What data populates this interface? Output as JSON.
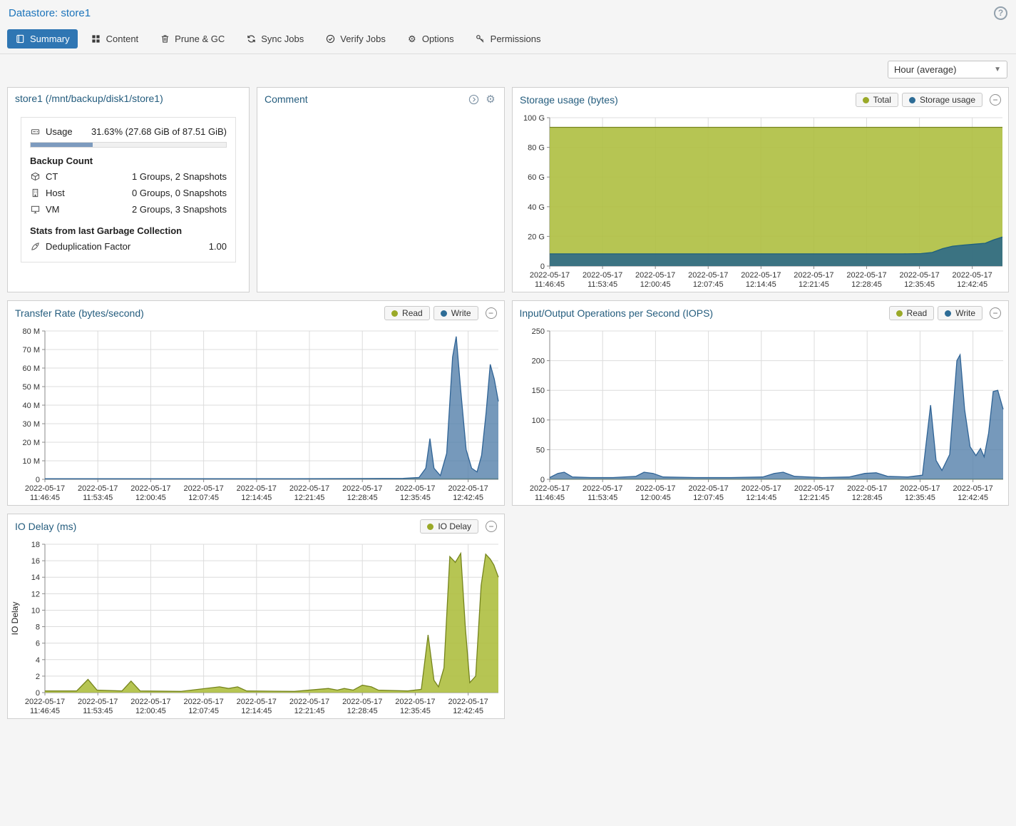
{
  "header": {
    "title": "Datastore: store1"
  },
  "icons": {
    "help": "?",
    "caret": "▼",
    "collapse": "−",
    "gear": "⚙"
  },
  "colors": {
    "accent": "#2f76b3",
    "link": "#1c74bb",
    "panel_title": "#255d7e",
    "progress_fill": "#7d9bbe",
    "olive": "#9aa928",
    "blue": "#2d6c96"
  },
  "tabs": [
    {
      "label": "Summary",
      "icon": "book-icon",
      "active": true
    },
    {
      "label": "Content",
      "icon": "grid-icon",
      "active": false
    },
    {
      "label": "Prune & GC",
      "icon": "trash-icon",
      "active": false
    },
    {
      "label": "Sync Jobs",
      "icon": "sync-icon",
      "active": false
    },
    {
      "label": "Verify Jobs",
      "icon": "check-icon",
      "active": false
    },
    {
      "label": "Options",
      "icon": "gear-icon",
      "active": false
    },
    {
      "label": "Permissions",
      "icon": "key-icon",
      "active": false
    }
  ],
  "toolbar": {
    "range_label": "Hour (average)"
  },
  "summary_panel": {
    "title": "store1 (/mnt/backup/disk1/store1)",
    "usage_label": "Usage",
    "usage_value": "31.63% (27.68 GiB of 87.51 GiB)",
    "usage_percent": 31.63,
    "backup_count_title": "Backup Count",
    "rows": [
      {
        "icon": "ct-icon",
        "label": "CT",
        "value": "1 Groups, 2 Snapshots"
      },
      {
        "icon": "host-icon",
        "label": "Host",
        "value": "0 Groups, 0 Snapshots"
      },
      {
        "icon": "vm-icon",
        "label": "VM",
        "value": "2 Groups, 3 Snapshots"
      }
    ],
    "gc_title": "Stats from last Garbage Collection",
    "dedup_label": "Deduplication Factor",
    "dedup_value": "1.00"
  },
  "comment_panel": {
    "title": "Comment",
    "content": ""
  },
  "chart_data": [
    {
      "id": "storage-usage",
      "type": "area",
      "title": "Storage usage (bytes)",
      "ymax": 100,
      "grid": true,
      "legend_position": "header",
      "yticks": [
        {
          "v": 0,
          "label": "0"
        },
        {
          "v": 20,
          "label": "20 G"
        },
        {
          "v": 40,
          "label": "40 G"
        },
        {
          "v": 60,
          "label": "60 G"
        },
        {
          "v": 80,
          "label": "80 G"
        },
        {
          "v": 100,
          "label": "100 G"
        }
      ],
      "xticks": {
        "date": "2022-05-17",
        "times": [
          "11:46:45",
          "11:53:45",
          "12:00:45",
          "12:07:45",
          "12:14:45",
          "12:21:45",
          "12:28:45",
          "12:35:45",
          "12:42:45"
        ]
      },
      "legend": [
        {
          "label": "Total",
          "color": "#9aa928"
        },
        {
          "label": "Storage usage",
          "color": "#2d6c96"
        }
      ],
      "series": [
        {
          "name": "Total",
          "stroke": "#75841c",
          "fill": "rgba(174,191,64,0.9)",
          "points": [
            [
              0,
              93.5
            ],
            [
              0.5,
              93.5
            ],
            [
              1,
              93.5
            ]
          ]
        },
        {
          "name": "Storage usage",
          "stroke": "#1d5f7e",
          "fill": "rgba(45,105,135,0.9)",
          "points": [
            [
              0,
              8.2
            ],
            [
              0.78,
              8.2
            ],
            [
              0.82,
              8.4
            ],
            [
              0.845,
              9.2
            ],
            [
              0.868,
              11.8
            ],
            [
              0.89,
              13.4
            ],
            [
              0.915,
              14.2
            ],
            [
              0.94,
              14.8
            ],
            [
              0.962,
              15.4
            ],
            [
              0.98,
              17.6
            ],
            [
              1,
              19.6
            ]
          ]
        }
      ]
    },
    {
      "id": "transfer-rate",
      "type": "area",
      "title": "Transfer Rate (bytes/second)",
      "ymax": 80,
      "grid": true,
      "legend_position": "header",
      "yticks": [
        {
          "v": 0,
          "label": "0"
        },
        {
          "v": 10,
          "label": "10 M"
        },
        {
          "v": 20,
          "label": "20 M"
        },
        {
          "v": 30,
          "label": "30 M"
        },
        {
          "v": 40,
          "label": "40 M"
        },
        {
          "v": 50,
          "label": "50 M"
        },
        {
          "v": 60,
          "label": "60 M"
        },
        {
          "v": 70,
          "label": "70 M"
        },
        {
          "v": 80,
          "label": "80 M"
        }
      ],
      "xticks": {
        "date": "2022-05-17",
        "times": [
          "11:46:45",
          "11:53:45",
          "12:00:45",
          "12:07:45",
          "12:14:45",
          "12:21:45",
          "12:28:45",
          "12:35:45",
          "12:42:45"
        ]
      },
      "legend": [
        {
          "label": "Read",
          "color": "#9aa928"
        },
        {
          "label": "Write",
          "color": "#2d6c96"
        }
      ],
      "series": [
        {
          "name": "Read",
          "stroke": "#75841c",
          "fill": "rgba(174,191,64,0.9)",
          "points": [
            [
              0,
              0.25
            ],
            [
              1,
              0.25
            ]
          ]
        },
        {
          "name": "Write",
          "stroke": "#2f6395",
          "fill": "rgba(84,128,170,0.8)",
          "points": [
            [
              0,
              0.3
            ],
            [
              0.55,
              0.3
            ],
            [
              0.79,
              0.5
            ],
            [
              0.825,
              1
            ],
            [
              0.84,
              6
            ],
            [
              0.849,
              22
            ],
            [
              0.858,
              6
            ],
            [
              0.872,
              2
            ],
            [
              0.886,
              14
            ],
            [
              0.899,
              66
            ],
            [
              0.907,
              77
            ],
            [
              0.917,
              48
            ],
            [
              0.929,
              16
            ],
            [
              0.941,
              6
            ],
            [
              0.953,
              4
            ],
            [
              0.963,
              13
            ],
            [
              0.973,
              36
            ],
            [
              0.982,
              62
            ],
            [
              0.991,
              54
            ],
            [
              1,
              42
            ]
          ]
        }
      ]
    },
    {
      "id": "iops",
      "type": "area",
      "title": "Input/Output Operations per Second (IOPS)",
      "ymax": 250,
      "grid": true,
      "legend_position": "header",
      "yticks": [
        {
          "v": 0,
          "label": "0"
        },
        {
          "v": 50,
          "label": "50"
        },
        {
          "v": 100,
          "label": "100"
        },
        {
          "v": 150,
          "label": "150"
        },
        {
          "v": 200,
          "label": "200"
        },
        {
          "v": 250,
          "label": "250"
        }
      ],
      "xticks": {
        "date": "2022-05-17",
        "times": [
          "11:46:45",
          "11:53:45",
          "12:00:45",
          "12:07:45",
          "12:14:45",
          "12:21:45",
          "12:28:45",
          "12:35:45",
          "12:42:45"
        ]
      },
      "legend": [
        {
          "label": "Read",
          "color": "#9aa928"
        },
        {
          "label": "Write",
          "color": "#2d6c96"
        }
      ],
      "series": [
        {
          "name": "Read",
          "stroke": "#75841c",
          "fill": "rgba(174,191,64,0.9)",
          "points": [
            [
              0,
              0.6
            ],
            [
              1,
              0.6
            ]
          ]
        },
        {
          "name": "Write",
          "stroke": "#2f6395",
          "fill": "rgba(84,128,170,0.8)",
          "points": [
            [
              0,
              3
            ],
            [
              0.018,
              10
            ],
            [
              0.032,
              12
            ],
            [
              0.05,
              4
            ],
            [
              0.09,
              3
            ],
            [
              0.14,
              3
            ],
            [
              0.19,
              5
            ],
            [
              0.208,
              12
            ],
            [
              0.228,
              10
            ],
            [
              0.25,
              4
            ],
            [
              0.32,
              3
            ],
            [
              0.4,
              3
            ],
            [
              0.47,
              4
            ],
            [
              0.495,
              10
            ],
            [
              0.515,
              12
            ],
            [
              0.54,
              5
            ],
            [
              0.6,
              3
            ],
            [
              0.66,
              4
            ],
            [
              0.695,
              10
            ],
            [
              0.72,
              11
            ],
            [
              0.745,
              5
            ],
            [
              0.79,
              4
            ],
            [
              0.822,
              7
            ],
            [
              0.84,
              125
            ],
            [
              0.852,
              32
            ],
            [
              0.865,
              15
            ],
            [
              0.882,
              42
            ],
            [
              0.898,
              200
            ],
            [
              0.905,
              210
            ],
            [
              0.915,
              118
            ],
            [
              0.927,
              55
            ],
            [
              0.94,
              40
            ],
            [
              0.95,
              52
            ],
            [
              0.958,
              38
            ],
            [
              0.968,
              78
            ],
            [
              0.978,
              148
            ],
            [
              0.988,
              150
            ],
            [
              1,
              118
            ]
          ]
        }
      ]
    },
    {
      "id": "io-delay",
      "type": "area",
      "title": "IO Delay (ms)",
      "ymax": 18,
      "ylabel": "IO Delay",
      "grid": true,
      "legend_position": "header",
      "yticks": [
        {
          "v": 0,
          "label": "0"
        },
        {
          "v": 2,
          "label": "2"
        },
        {
          "v": 4,
          "label": "4"
        },
        {
          "v": 6,
          "label": "6"
        },
        {
          "v": 8,
          "label": "8"
        },
        {
          "v": 10,
          "label": "10"
        },
        {
          "v": 12,
          "label": "12"
        },
        {
          "v": 14,
          "label": "14"
        },
        {
          "v": 16,
          "label": "16"
        },
        {
          "v": 18,
          "label": "18"
        }
      ],
      "xticks": {
        "date": "2022-05-17",
        "times": [
          "11:46:45",
          "11:53:45",
          "12:00:45",
          "12:07:45",
          "12:14:45",
          "12:21:45",
          "12:28:45",
          "12:35:45",
          "12:42:45"
        ]
      },
      "legend": [
        {
          "label": "IO Delay",
          "color": "#9aa928"
        }
      ],
      "series": [
        {
          "name": "IO Delay",
          "stroke": "#75841c",
          "fill": "rgba(174,191,64,0.9)",
          "points": [
            [
              0,
              0.2
            ],
            [
              0.07,
              0.2
            ],
            [
              0.095,
              1.6
            ],
            [
              0.115,
              0.3
            ],
            [
              0.17,
              0.2
            ],
            [
              0.19,
              1.4
            ],
            [
              0.21,
              0.2
            ],
            [
              0.3,
              0.15
            ],
            [
              0.385,
              0.7
            ],
            [
              0.405,
              0.5
            ],
            [
              0.425,
              0.7
            ],
            [
              0.445,
              0.2
            ],
            [
              0.55,
              0.15
            ],
            [
              0.625,
              0.5
            ],
            [
              0.645,
              0.3
            ],
            [
              0.66,
              0.5
            ],
            [
              0.68,
              0.3
            ],
            [
              0.7,
              0.9
            ],
            [
              0.72,
              0.7
            ],
            [
              0.735,
              0.3
            ],
            [
              0.8,
              0.2
            ],
            [
              0.83,
              0.4
            ],
            [
              0.845,
              7
            ],
            [
              0.858,
              1.5
            ],
            [
              0.868,
              0.7
            ],
            [
              0.88,
              3
            ],
            [
              0.893,
              16.5
            ],
            [
              0.905,
              15.8
            ],
            [
              0.917,
              16.9
            ],
            [
              0.927,
              8
            ],
            [
              0.937,
              1.2
            ],
            [
              0.95,
              2
            ],
            [
              0.962,
              13
            ],
            [
              0.972,
              16.8
            ],
            [
              0.982,
              16.2
            ],
            [
              0.99,
              15.5
            ],
            [
              1,
              14
            ]
          ]
        }
      ]
    }
  ]
}
